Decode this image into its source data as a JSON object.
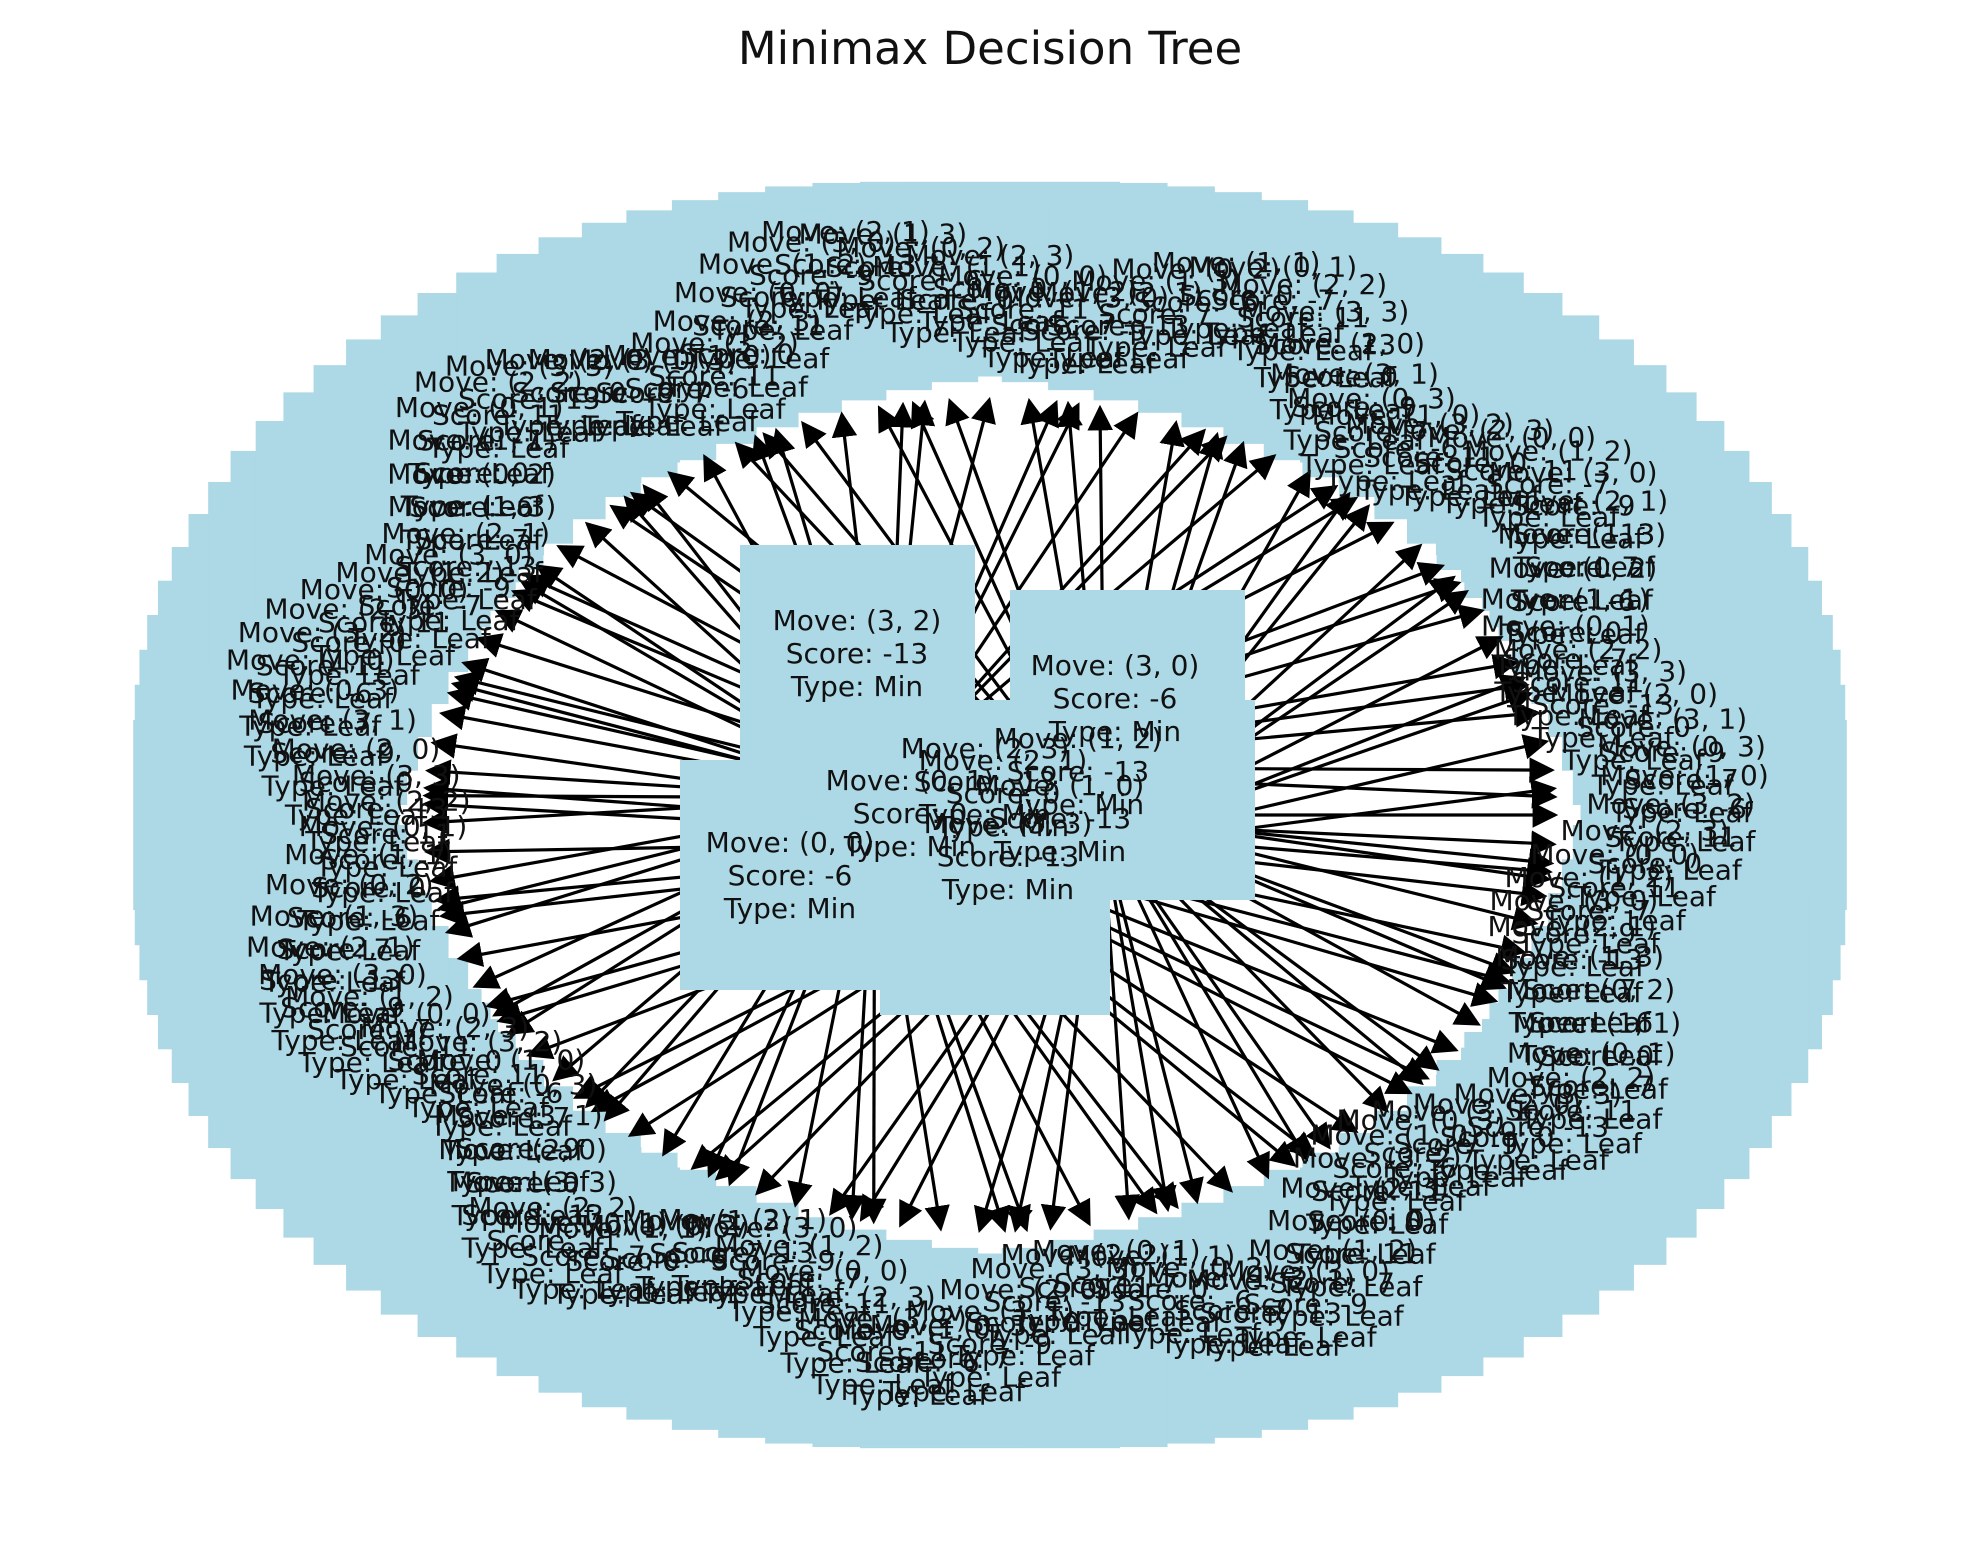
{
  "title": "Minimax Decision Tree",
  "colors": {
    "node_fill": "#add8e6",
    "edge": "#000000",
    "text": "#111111",
    "background": "#ffffff"
  },
  "root": {
    "move": "Move: (3, 2)",
    "score": "Score: -13",
    "type": "Type: Min"
  },
  "center_nodes": [
    {
      "move": "Move: (3, 0)",
      "score": "Score: -6",
      "type": "Type: Min"
    },
    {
      "move": "Move: (1, 2)",
      "score": "Score: -13",
      "type": "Type: Min"
    },
    {
      "move": "Move: (2, 1)",
      "score": "Score: 0",
      "type": "Type: Min"
    },
    {
      "move": "Move: (2, 3)",
      "score": "Score: -13",
      "type": "Type: Min"
    },
    {
      "move": "Move: (0, 0)",
      "score": "Score: -6",
      "type": "Type: Min"
    },
    {
      "move": "Move: (1, 0)",
      "score": "Score: -13",
      "type": "Type: Min"
    },
    {
      "move": "Move: (0, 1)",
      "score": "Score: 0",
      "type": "Type: Min"
    },
    {
      "move": "Move: (3, 3)",
      "score": "Score: -13",
      "type": "Type: Min"
    }
  ],
  "leaf_labels": [
    {
      "move": "Move: (2, 3)",
      "score": "Score: 0",
      "type": "Type: Leaf"
    },
    {
      "move": "Move: (0, 0)",
      "score": "Score: 11",
      "type": "Type: Leaf"
    },
    {
      "move": "Move: (1, 2)",
      "score": "Score: -7",
      "type": "Type: Leaf"
    },
    {
      "move": "Move: (3, 0)",
      "score": "Score: -9",
      "type": "Type: Leaf"
    },
    {
      "move": "Move: (2, 1)",
      "score": "Score: -13",
      "type": "Type: Leaf"
    },
    {
      "move": "Move: (1, 3)",
      "score": "Score: 7",
      "type": "Type: Leaf"
    },
    {
      "move": "Move: (0, 2)",
      "score": "Score: -6",
      "type": "Type: Leaf"
    },
    {
      "move": "Move: (1, 1)",
      "score": "Score: 0",
      "type": "Type: Leaf"
    },
    {
      "move": "Move: (0, 1)",
      "score": "Score: -7",
      "type": "Type: Leaf"
    },
    {
      "move": "Move: (2, 2)",
      "score": "Score: 11",
      "type": "Type: Leaf"
    },
    {
      "move": "Move: (3, 3)",
      "score": "Score: -13",
      "type": "Type: Leaf"
    },
    {
      "move": "Move: (2, 0)",
      "score": "Score: 0",
      "type": "Type: Leaf"
    },
    {
      "move": "Move: (3, 1)",
      "score": "Score: -9",
      "type": "Type: Leaf"
    },
    {
      "move": "Move: (0, 3)",
      "score": "Score: 7",
      "type": "Type: Leaf"
    },
    {
      "move": "Move: (1, 0)",
      "score": "Score: -6",
      "type": "Type: Leaf"
    },
    {
      "move": "Move: (3, 2)",
      "score": "Score: 11",
      "type": "Type: Leaf"
    }
  ]
}
